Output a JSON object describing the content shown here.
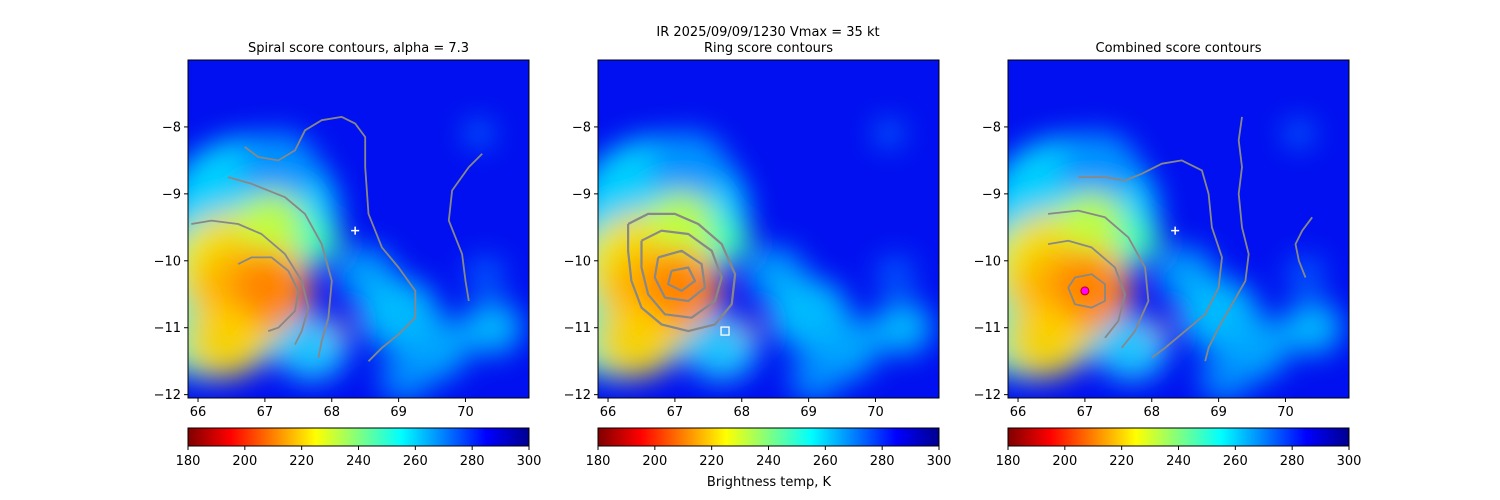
{
  "suptitle": {
    "line1": "IR  2025/09/09/1230    Vmax = 35 kt"
  },
  "colorbar_label": "Brightness temp, K",
  "colormap_stops": [
    "#800000",
    "#ff0000",
    "#ff8000",
    "#ffff00",
    "#80ff80",
    "#00ffff",
    "#0080ff",
    "#0000ff",
    "#00008f"
  ],
  "chart_data": [
    {
      "type": "heatmap",
      "title": "Spiral score contours, alpha =  7.3",
      "x_ticks": [
        "66",
        "67",
        "68",
        "69",
        "70"
      ],
      "y_ticks": [
        "−8",
        "−9",
        "−10",
        "−11",
        "−12"
      ],
      "xlim": [
        65.85,
        70.95
      ],
      "ylim": [
        -12.05,
        -7.0
      ],
      "colorbar": {
        "range": [
          180,
          300
        ],
        "ticks": [
          "180",
          "200",
          "220",
          "240",
          "260",
          "280",
          "300"
        ]
      },
      "marker": {
        "symbol": "plus",
        "x": 68.35,
        "y": -9.55,
        "color": "#ffffff"
      },
      "contour_color": "#888888",
      "contours": [
        [
          [
            66.6,
            -10.05
          ],
          [
            66.8,
            -9.95
          ],
          [
            67.1,
            -9.95
          ],
          [
            67.35,
            -10.15
          ],
          [
            67.5,
            -10.45
          ],
          [
            67.45,
            -10.75
          ],
          [
            67.2,
            -11.0
          ],
          [
            67.05,
            -11.05
          ]
        ],
        [
          [
            65.9,
            -9.45
          ],
          [
            66.2,
            -9.4
          ],
          [
            66.6,
            -9.45
          ],
          [
            66.95,
            -9.6
          ],
          [
            67.3,
            -9.9
          ],
          [
            67.55,
            -10.3
          ],
          [
            67.65,
            -10.7
          ],
          [
            67.55,
            -11.05
          ],
          [
            67.45,
            -11.25
          ]
        ],
        [
          [
            66.45,
            -8.75
          ],
          [
            66.8,
            -8.85
          ],
          [
            67.3,
            -9.05
          ],
          [
            67.6,
            -9.3
          ],
          [
            67.85,
            -9.75
          ],
          [
            68.0,
            -10.3
          ],
          [
            67.95,
            -10.85
          ],
          [
            67.85,
            -11.2
          ],
          [
            67.8,
            -11.45
          ]
        ],
        [
          [
            66.7,
            -8.3
          ],
          [
            66.9,
            -8.45
          ],
          [
            67.2,
            -8.5
          ],
          [
            67.45,
            -8.35
          ],
          [
            67.6,
            -8.05
          ],
          [
            67.85,
            -7.9
          ],
          [
            68.15,
            -7.85
          ],
          [
            68.35,
            -7.95
          ],
          [
            68.5,
            -8.15
          ],
          [
            68.5,
            -8.6
          ],
          [
            68.55,
            -9.3
          ],
          [
            68.75,
            -9.8
          ],
          [
            69.0,
            -10.1
          ],
          [
            69.25,
            -10.45
          ],
          [
            69.25,
            -10.85
          ],
          [
            69.0,
            -11.1
          ],
          [
            68.75,
            -11.3
          ],
          [
            68.55,
            -11.5
          ]
        ],
        [
          [
            70.25,
            -8.4
          ],
          [
            70.05,
            -8.6
          ],
          [
            69.8,
            -8.95
          ],
          [
            69.75,
            -9.4
          ],
          [
            69.95,
            -9.9
          ],
          [
            70.0,
            -10.3
          ],
          [
            70.05,
            -10.6
          ]
        ]
      ]
    },
    {
      "type": "heatmap",
      "title": "Ring score contours",
      "x_ticks": [
        "66",
        "67",
        "68",
        "69",
        "70"
      ],
      "y_ticks": [
        "−8",
        "−9",
        "−10",
        "−11",
        "−12"
      ],
      "xlim": [
        65.85,
        70.95
      ],
      "ylim": [
        -12.05,
        -7.0
      ],
      "colorbar": {
        "range": [
          180,
          300
        ],
        "ticks": [
          "180",
          "200",
          "220",
          "240",
          "260",
          "280",
          "300"
        ]
      },
      "marker": {
        "symbol": "square",
        "x": 67.75,
        "y": -11.05,
        "color": "#ffffff"
      },
      "contour_color": "#888888",
      "contours": [
        [
          [
            66.3,
            -9.45
          ],
          [
            66.6,
            -9.3
          ],
          [
            67.0,
            -9.3
          ],
          [
            67.35,
            -9.45
          ],
          [
            67.7,
            -9.75
          ],
          [
            67.9,
            -10.2
          ],
          [
            67.85,
            -10.65
          ],
          [
            67.6,
            -10.95
          ],
          [
            67.2,
            -11.05
          ],
          [
            66.8,
            -10.95
          ],
          [
            66.5,
            -10.7
          ],
          [
            66.35,
            -10.3
          ],
          [
            66.3,
            -9.85
          ],
          [
            66.3,
            -9.45
          ]
        ],
        [
          [
            66.5,
            -9.7
          ],
          [
            66.8,
            -9.55
          ],
          [
            67.2,
            -9.6
          ],
          [
            67.55,
            -9.85
          ],
          [
            67.7,
            -10.25
          ],
          [
            67.6,
            -10.6
          ],
          [
            67.25,
            -10.85
          ],
          [
            66.85,
            -10.8
          ],
          [
            66.6,
            -10.5
          ],
          [
            66.5,
            -10.1
          ],
          [
            66.5,
            -9.7
          ]
        ],
        [
          [
            66.75,
            -9.95
          ],
          [
            67.1,
            -9.85
          ],
          [
            67.4,
            -10.05
          ],
          [
            67.45,
            -10.4
          ],
          [
            67.2,
            -10.6
          ],
          [
            66.85,
            -10.55
          ],
          [
            66.7,
            -10.25
          ],
          [
            66.75,
            -9.95
          ]
        ],
        [
          [
            66.95,
            -10.15
          ],
          [
            67.2,
            -10.1
          ],
          [
            67.3,
            -10.3
          ],
          [
            67.1,
            -10.45
          ],
          [
            66.9,
            -10.35
          ],
          [
            66.95,
            -10.15
          ]
        ]
      ]
    },
    {
      "type": "heatmap",
      "title": "Combined score contours",
      "x_ticks": [
        "66",
        "67",
        "68",
        "69",
        "70"
      ],
      "y_ticks": [
        "−8",
        "−9",
        "−10",
        "−11",
        "−12"
      ],
      "xlim": [
        65.85,
        70.95
      ],
      "ylim": [
        -12.05,
        -7.0
      ],
      "colorbar": {
        "range": [
          180,
          300
        ],
        "ticks": [
          "180",
          "200",
          "220",
          "240",
          "260",
          "280",
          "300"
        ]
      },
      "marker": {
        "symbol": "plus",
        "x": 68.35,
        "y": -9.55,
        "color": "#ffffff"
      },
      "center_marker": {
        "x": 67.0,
        "y": -10.45,
        "color": "#ff00ff"
      },
      "contour_color": "#888888",
      "contours": [
        [
          [
            66.75,
            -10.4
          ],
          [
            66.85,
            -10.25
          ],
          [
            67.1,
            -10.2
          ],
          [
            67.3,
            -10.35
          ],
          [
            67.3,
            -10.6
          ],
          [
            67.1,
            -10.7
          ],
          [
            66.85,
            -10.65
          ],
          [
            66.75,
            -10.4
          ]
        ],
        [
          [
            66.45,
            -9.75
          ],
          [
            66.75,
            -9.7
          ],
          [
            67.1,
            -9.8
          ],
          [
            67.45,
            -10.1
          ],
          [
            67.6,
            -10.5
          ],
          [
            67.5,
            -10.9
          ],
          [
            67.3,
            -11.15
          ]
        ],
        [
          [
            66.45,
            -9.3
          ],
          [
            66.9,
            -9.25
          ],
          [
            67.3,
            -9.35
          ],
          [
            67.65,
            -9.65
          ],
          [
            67.9,
            -10.1
          ],
          [
            67.95,
            -10.6
          ],
          [
            67.75,
            -11.05
          ],
          [
            67.55,
            -11.3
          ]
        ],
        [
          [
            66.9,
            -8.75
          ],
          [
            67.3,
            -8.75
          ],
          [
            67.6,
            -8.8
          ],
          [
            67.85,
            -8.7
          ],
          [
            68.15,
            -8.55
          ],
          [
            68.45,
            -8.5
          ],
          [
            68.75,
            -8.65
          ],
          [
            68.85,
            -9.0
          ],
          [
            68.9,
            -9.5
          ],
          [
            69.05,
            -9.95
          ],
          [
            69.0,
            -10.4
          ],
          [
            68.8,
            -10.8
          ],
          [
            68.5,
            -11.05
          ],
          [
            68.2,
            -11.3
          ],
          [
            68.0,
            -11.45
          ]
        ],
        [
          [
            69.35,
            -7.85
          ],
          [
            69.3,
            -8.2
          ],
          [
            69.35,
            -8.6
          ],
          [
            69.3,
            -9.0
          ],
          [
            69.35,
            -9.5
          ],
          [
            69.45,
            -9.9
          ],
          [
            69.4,
            -10.3
          ],
          [
            69.2,
            -10.65
          ],
          [
            69.0,
            -11.0
          ],
          [
            68.85,
            -11.3
          ],
          [
            68.8,
            -11.5
          ]
        ],
        [
          [
            70.4,
            -9.35
          ],
          [
            70.25,
            -9.55
          ],
          [
            70.15,
            -9.75
          ],
          [
            70.2,
            -10.0
          ],
          [
            70.3,
            -10.25
          ]
        ]
      ]
    }
  ]
}
